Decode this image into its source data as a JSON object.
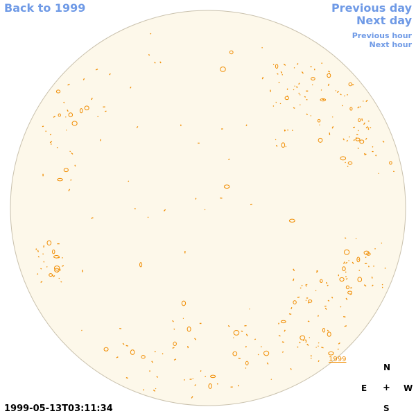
{
  "nav": {
    "back": "Back to 1999",
    "previous_day": "Previous day",
    "next_day": "Next day",
    "previous_hour": "Previous hour",
    "next_hour": "Next hour"
  },
  "timestamp": "1999-05-13T03:11:34",
  "compass": {
    "north": "N",
    "south": "S",
    "east": "E",
    "west": "W",
    "center": "+"
  },
  "map": {
    "year_label": "1999"
  },
  "colors": {
    "disk": "#fdf8ea",
    "disk_border": "#c9c1ad",
    "contour": "#f08c00",
    "link": "#6f9ae6"
  }
}
